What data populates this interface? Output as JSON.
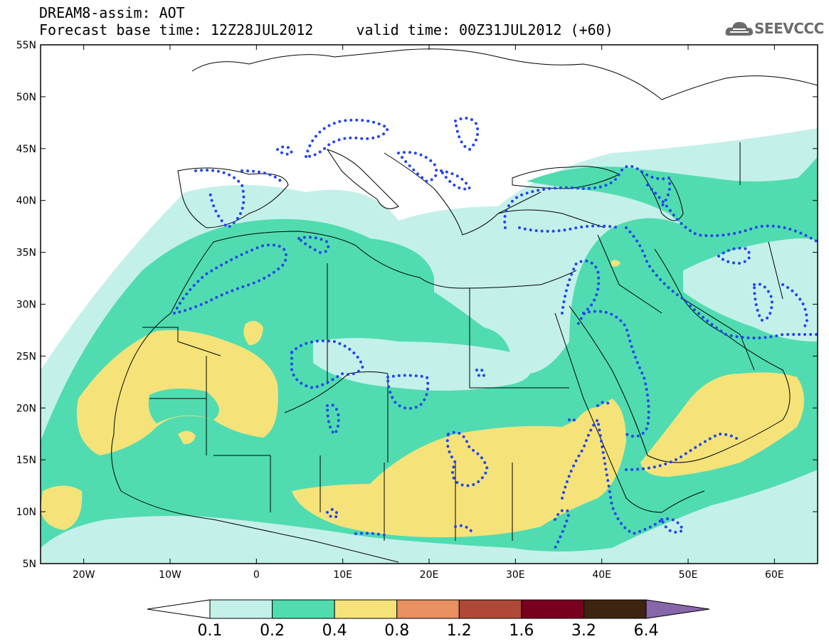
{
  "header": {
    "title_line1": "DREAM8-assim: AOT",
    "title_line2": "Forecast base time: 12Z28JUL2012     valid time: 00Z31JUL2012 (+60)",
    "logo_text": "SEEVCCC",
    "logo_icon": "cloud-logo-icon"
  },
  "map": {
    "lon_range": [
      -25,
      65
    ],
    "lat_range": [
      5,
      55
    ],
    "lat_ticks": [
      {
        "value": 55,
        "label": "55N"
      },
      {
        "value": 50,
        "label": "50N"
      },
      {
        "value": 45,
        "label": "45N"
      },
      {
        "value": 40,
        "label": "40N"
      },
      {
        "value": 35,
        "label": "35N"
      },
      {
        "value": 30,
        "label": "30N"
      },
      {
        "value": 25,
        "label": "25N"
      },
      {
        "value": 20,
        "label": "20N"
      },
      {
        "value": 15,
        "label": "15N"
      },
      {
        "value": 10,
        "label": "10N"
      },
      {
        "value": 5,
        "label": "5N"
      }
    ],
    "lon_ticks": [
      {
        "value": -20,
        "label": "20W"
      },
      {
        "value": -10,
        "label": "10W"
      },
      {
        "value": 0,
        "label": "0"
      },
      {
        "value": 10,
        "label": "10E"
      },
      {
        "value": 20,
        "label": "20E"
      },
      {
        "value": 30,
        "label": "30E"
      },
      {
        "value": 40,
        "label": "40E"
      },
      {
        "value": 50,
        "label": "50E"
      },
      {
        "value": 60,
        "label": "60E"
      }
    ]
  },
  "colorbar": {
    "labels": [
      "0.1",
      "0.2",
      "0.4",
      "0.8",
      "1.2",
      "1.6",
      "3.2",
      "6.4"
    ],
    "colors": [
      "#ffffff",
      "#c4f0ea",
      "#50dcb0",
      "#f5e37a",
      "#e89060",
      "#b04838",
      "#78001e",
      "#3c2410",
      "#8866aa"
    ]
  }
}
